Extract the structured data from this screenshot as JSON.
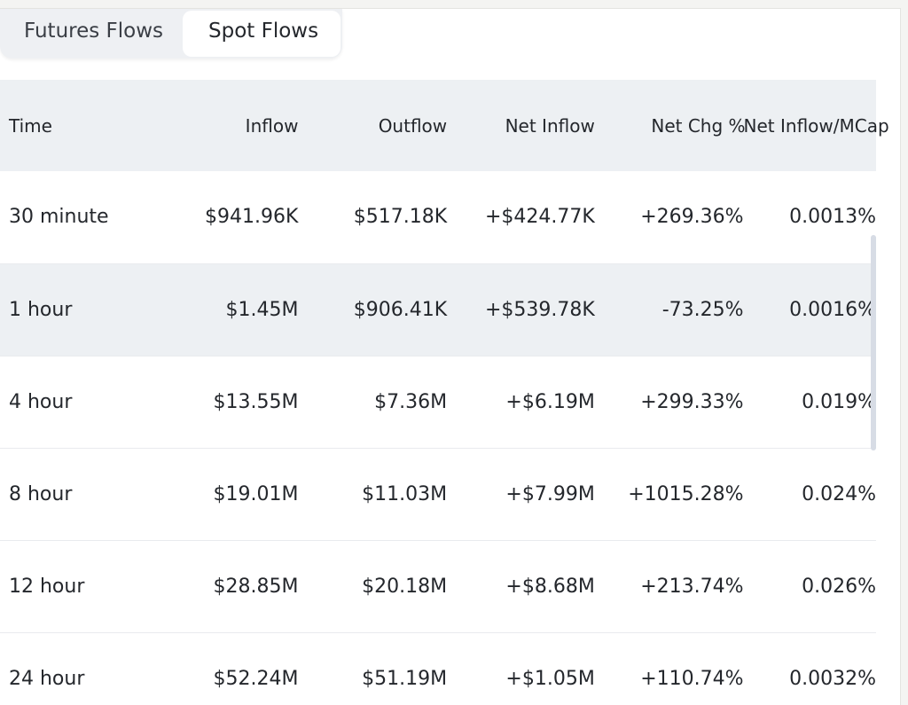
{
  "tabs": [
    {
      "label": "Futures Flows",
      "active": false
    },
    {
      "label": "Spot Flows",
      "active": true
    }
  ],
  "table": {
    "headers": {
      "time": "Time",
      "inflow": "Inflow",
      "outflow": "Outflow",
      "net_inflow": "Net Inflow",
      "net_chg": "Net Chg %",
      "net_inflow_mcap": "Net Inflow/MCap"
    },
    "rows": [
      {
        "time": "30 minute",
        "inflow": "$941.96K",
        "outflow": "$517.18K",
        "net_inflow": "+$424.77K",
        "net_chg": "+269.36%",
        "net_inflow_mcap": "0.0013%"
      },
      {
        "time": "1 hour",
        "inflow": "$1.45M",
        "outflow": "$906.41K",
        "net_inflow": "+$539.78K",
        "net_chg": "-73.25%",
        "net_inflow_mcap": "0.0016%"
      },
      {
        "time": "4 hour",
        "inflow": "$13.55M",
        "outflow": "$7.36M",
        "net_inflow": "+$6.19M",
        "net_chg": "+299.33%",
        "net_inflow_mcap": "0.019%"
      },
      {
        "time": "8 hour",
        "inflow": "$19.01M",
        "outflow": "$11.03M",
        "net_inflow": "+$7.99M",
        "net_chg": "+1015.28%",
        "net_inflow_mcap": "0.024%"
      },
      {
        "time": "12 hour",
        "inflow": "$28.85M",
        "outflow": "$20.18M",
        "net_inflow": "+$8.68M",
        "net_chg": "+213.74%",
        "net_inflow_mcap": "0.026%"
      },
      {
        "time": "24 hour",
        "inflow": "$52.24M",
        "outflow": "$51.19M",
        "net_inflow": "+$1.05M",
        "net_chg": "+110.74%",
        "net_inflow_mcap": "0.0032%"
      }
    ]
  },
  "colors": {
    "positive": "#3fa37c",
    "negative": "#d9464f",
    "header_bg": "#edf0f3",
    "text": "#24272c"
  }
}
